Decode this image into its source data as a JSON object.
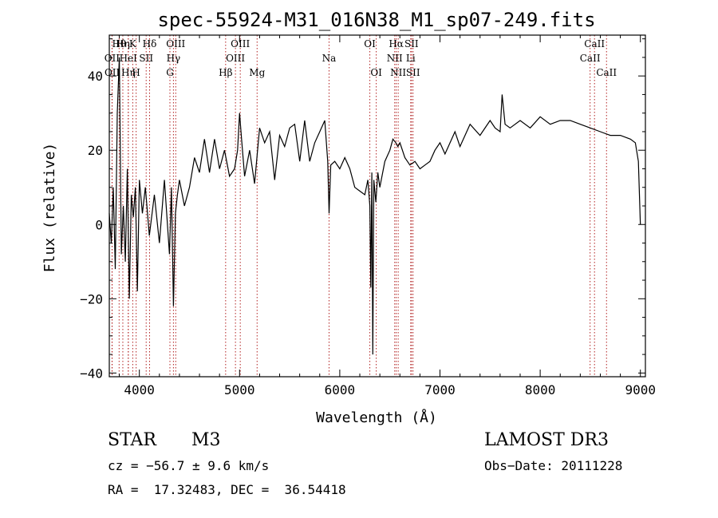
{
  "chart_data": {
    "type": "line",
    "title": "spec-55924-M31_016N38_M1_sp07-249.fits",
    "xlabel": "Wavelength (Å)",
    "ylabel": "Flux (relative)",
    "xlim": [
      3700,
      9050
    ],
    "ylim": [
      -41,
      51
    ],
    "xticks": [
      4000,
      5000,
      6000,
      7000,
      8000,
      9000
    ],
    "yticks": [
      -40,
      -20,
      0,
      20,
      40
    ],
    "spectrum": {
      "x": [
        3700,
        3720,
        3740,
        3760,
        3780,
        3800,
        3820,
        3840,
        3860,
        3880,
        3900,
        3920,
        3940,
        3960,
        3980,
        4000,
        4030,
        4060,
        4100,
        4150,
        4200,
        4250,
        4300,
        4320,
        4340,
        4360,
        4380,
        4400,
        4450,
        4500,
        4550,
        4600,
        4650,
        4700,
        4750,
        4800,
        4850,
        4900,
        4950,
        4980,
        5000,
        5020,
        5050,
        5100,
        5150,
        5200,
        5250,
        5300,
        5350,
        5400,
        5450,
        5500,
        5550,
        5600,
        5650,
        5700,
        5750,
        5800,
        5850,
        5880,
        5893,
        5910,
        5950,
        6000,
        6050,
        6100,
        6150,
        6200,
        6250,
        6280,
        6300,
        6310,
        6320,
        6330,
        6340,
        6360,
        6380,
        6400,
        6450,
        6500,
        6530,
        6560,
        6580,
        6600,
        6650,
        6700,
        6750,
        6800,
        6850,
        6900,
        6950,
        7000,
        7050,
        7100,
        7150,
        7200,
        7300,
        7400,
        7500,
        7550,
        7600,
        7620,
        7650,
        7700,
        7800,
        7900,
        8000,
        8100,
        8200,
        8300,
        8400,
        8500,
        8600,
        8700,
        8800,
        8900,
        8950,
        8980,
        9000
      ],
      "y": [
        3,
        -5,
        10,
        -12,
        30,
        45,
        -8,
        5,
        -10,
        15,
        -20,
        8,
        2,
        10,
        -18,
        12,
        3,
        10,
        -3,
        8,
        -5,
        12,
        -8,
        10,
        -22,
        3,
        8,
        12,
        5,
        10,
        18,
        14,
        23,
        14,
        23,
        15,
        20,
        13,
        15,
        20,
        30,
        23,
        13,
        20,
        11,
        26,
        22,
        25,
        12,
        24,
        21,
        26,
        27,
        17,
        28,
        17,
        22,
        25,
        28,
        17,
        3,
        16,
        17,
        15,
        18,
        15,
        10,
        9,
        8,
        12,
        5,
        -17,
        14,
        -35,
        12,
        6,
        14,
        10,
        17,
        20,
        23,
        22,
        21,
        22,
        18,
        16,
        17,
        15,
        16,
        17,
        20,
        22,
        19,
        22,
        25,
        21,
        27,
        24,
        28,
        26,
        25,
        35,
        27,
        26,
        28,
        26,
        29,
        27,
        28,
        28,
        27,
        26,
        25,
        24,
        24,
        23,
        22,
        17,
        0
      ]
    },
    "lines": [
      {
        "label": "Hθ",
        "x": 3798,
        "row": 0
      },
      {
        "label": "OII",
        "x": 3727,
        "row": 1
      },
      {
        "label": "OII",
        "x": 3729,
        "row": 2
      },
      {
        "label": "Hη",
        "x": 3835,
        "row": 0
      },
      {
        "label": "HeI",
        "x": 3889,
        "row": 1
      },
      {
        "label": "Hη",
        "x": 3890,
        "row": 2
      },
      {
        "label": "K",
        "x": 3934,
        "row": 0
      },
      {
        "label": "SII",
        "x": 4068,
        "row": 1
      },
      {
        "label": "H",
        "x": 3968,
        "row": 2
      },
      {
        "label": "Hδ",
        "x": 4102,
        "row": 0
      },
      {
        "label": "OIII",
        "x": 4363,
        "row": 0
      },
      {
        "label": "Hγ",
        "x": 4340,
        "row": 1
      },
      {
        "label": "G",
        "x": 4305,
        "row": 2
      },
      {
        "label": "Hβ",
        "x": 4861,
        "row": 2
      },
      {
        "label": "OIII",
        "x": 4959,
        "row": 1
      },
      {
        "label": "OIII",
        "x": 5007,
        "row": 0
      },
      {
        "label": "Mg",
        "x": 5175,
        "row": 2
      },
      {
        "label": "Na",
        "x": 5893,
        "row": 1
      },
      {
        "label": "OI",
        "x": 6300,
        "row": 0
      },
      {
        "label": "OI",
        "x": 6364,
        "row": 2
      },
      {
        "label": "NII",
        "x": 6548,
        "row": 1
      },
      {
        "label": "NII",
        "x": 6583,
        "row": 2
      },
      {
        "label": "Hα",
        "x": 6563,
        "row": 0
      },
      {
        "label": "SII",
        "x": 6716,
        "row": 0
      },
      {
        "label": "Li",
        "x": 6708,
        "row": 1
      },
      {
        "label": "SII",
        "x": 6731,
        "row": 2
      },
      {
        "label": "CaII",
        "x": 8542,
        "row": 0
      },
      {
        "label": "CaII",
        "x": 8498,
        "row": 1
      },
      {
        "label": "CaII",
        "x": 8662,
        "row": 2
      }
    ]
  },
  "info": {
    "object_class": "STAR",
    "subclass": "M3",
    "survey": "LAMOST DR3",
    "redshift": "cz = −56.7 ± 9.6 km/s",
    "obs_date": "Obs−Date: 20111228",
    "coords": "RA =  17.32483, DEC =  36.54418"
  },
  "colors": {
    "spectrum": "#000000",
    "line_markers": "#b22222",
    "axes": "#000000"
  }
}
